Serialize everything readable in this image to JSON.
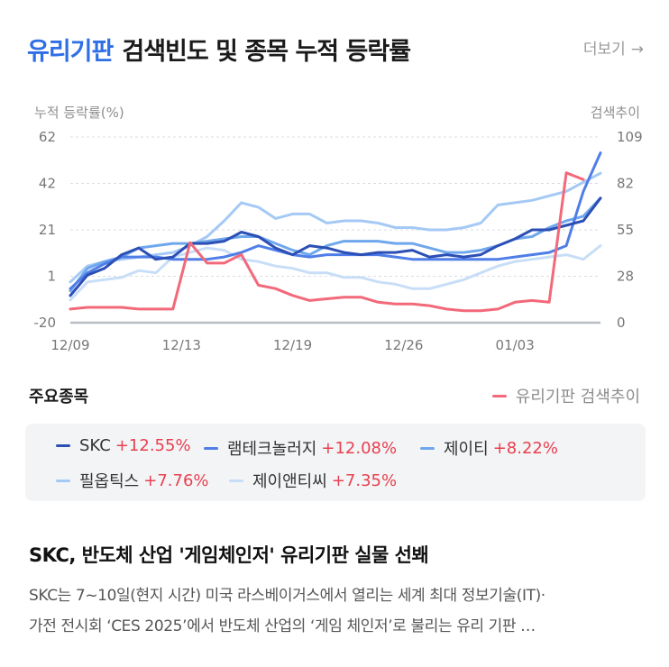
{
  "header": {
    "title_accent": "유리기판",
    "title_rest": "검색빈도 및 종목 누적 등락률",
    "more_label": "더보기",
    "more_arrow": "→"
  },
  "chart_data": {
    "type": "line",
    "left_axis_title": "누적 등락률(%)",
    "right_axis_title": "검색추이",
    "ylim_left": [
      -20,
      62
    ],
    "yticks_left": [
      "62",
      "42",
      "21",
      "1",
      "-20"
    ],
    "ylim_right": [
      0,
      109
    ],
    "yticks_right": [
      "109",
      "82",
      "55",
      "28",
      "0"
    ],
    "xlim": [
      0,
      31
    ],
    "xticks": [
      {
        "label": "12/09",
        "x": 0
      },
      {
        "label": "12/13",
        "x": 6.5
      },
      {
        "label": "12/19",
        "x": 13
      },
      {
        "label": "12/26",
        "x": 19.5
      },
      {
        "label": "01/03",
        "x": 26
      }
    ],
    "grid": true,
    "series": [
      {
        "name": "SKC",
        "color": "#2c4fb5",
        "axis": "left",
        "x": [
          0,
          1,
          2,
          3,
          4,
          5,
          6,
          7,
          8,
          9,
          10,
          11,
          12,
          13,
          14,
          15,
          16,
          17,
          18,
          19,
          20,
          21,
          22,
          23,
          24,
          25,
          26,
          27,
          28,
          29,
          30,
          31
        ],
        "y": [
          -8,
          1,
          4,
          10,
          13,
          8,
          9,
          15,
          15,
          16,
          20,
          18,
          13,
          10,
          14,
          13,
          11,
          10,
          11,
          11,
          12,
          9,
          10,
          9,
          10,
          14,
          17,
          21,
          21,
          23,
          25,
          35
        ]
      },
      {
        "name": "램테크놀러지",
        "color": "#4f7ee8",
        "axis": "left",
        "x": [
          0,
          1,
          2,
          3,
          4,
          5,
          6,
          7,
          8,
          9,
          10,
          11,
          12,
          13,
          14,
          15,
          16,
          17,
          18,
          19,
          20,
          21,
          22,
          23,
          24,
          25,
          26,
          27,
          28,
          29,
          30,
          31
        ],
        "y": [
          -5,
          2,
          6,
          9,
          9,
          9,
          8,
          8,
          8,
          9,
          11,
          14,
          12,
          10,
          9,
          10,
          10,
          10,
          10,
          9,
          8,
          8,
          8,
          8,
          8,
          8,
          9,
          10,
          11,
          14,
          38,
          55
        ]
      },
      {
        "name": "제이티",
        "color": "#6fa7ec",
        "axis": "left",
        "x": [
          0,
          1,
          2,
          3,
          4,
          5,
          6,
          7,
          8,
          9,
          10,
          11,
          12,
          13,
          14,
          15,
          16,
          17,
          18,
          19,
          20,
          21,
          22,
          23,
          24,
          25,
          26,
          27,
          28,
          29,
          30,
          31
        ],
        "y": [
          -6,
          4,
          7,
          9,
          13,
          14,
          15,
          15,
          16,
          17,
          18,
          18,
          15,
          12,
          10,
          14,
          16,
          16,
          16,
          15,
          15,
          13,
          11,
          11,
          12,
          14,
          17,
          18,
          22,
          25,
          27,
          35
        ]
      },
      {
        "name": "필옵틱스",
        "color": "#a5c9f5",
        "axis": "left",
        "x": [
          0,
          1,
          2,
          3,
          4,
          5,
          6,
          7,
          8,
          9,
          10,
          11,
          12,
          13,
          14,
          15,
          16,
          17,
          18,
          19,
          20,
          21,
          22,
          23,
          24,
          25,
          26,
          27,
          28,
          29,
          30,
          31
        ],
        "y": [
          -2,
          5,
          7,
          8,
          9,
          10,
          11,
          14,
          18,
          25,
          33,
          31,
          26,
          28,
          28,
          24,
          25,
          25,
          24,
          22,
          22,
          21,
          21,
          22,
          24,
          32,
          33,
          34,
          36,
          38,
          42,
          46
        ]
      },
      {
        "name": "제이앤티씨",
        "color": "#c8def7",
        "axis": "left",
        "x": [
          0,
          1,
          2,
          3,
          4,
          5,
          6,
          7,
          8,
          9,
          10,
          11,
          12,
          13,
          14,
          15,
          16,
          17,
          18,
          19,
          20,
          21,
          22,
          23,
          24,
          25,
          26,
          27,
          28,
          29,
          30,
          31
        ],
        "y": [
          -10,
          -2,
          -1,
          0,
          3,
          2,
          9,
          11,
          13,
          12,
          8,
          7,
          5,
          4,
          2,
          2,
          0,
          0,
          -2,
          -3,
          -5,
          -5,
          -3,
          -1,
          2,
          5,
          7,
          8,
          9,
          10,
          8,
          14
        ]
      },
      {
        "name": "유리기판 검색추이",
        "color": "#f2697a",
        "axis": "right",
        "x": [
          0,
          1,
          2,
          3,
          4,
          5,
          6,
          7,
          8,
          9,
          10,
          11,
          12,
          13,
          14,
          15,
          16,
          17,
          18,
          19,
          20,
          21,
          22,
          23,
          24,
          25,
          26,
          27,
          28,
          29,
          30
        ],
        "y": [
          8,
          9,
          9,
          9,
          8,
          8,
          8,
          47,
          35,
          35,
          40,
          22,
          20,
          16,
          13,
          14,
          15,
          15,
          12,
          11,
          11,
          10,
          8,
          7,
          7,
          8,
          12,
          13,
          12,
          88,
          84
        ]
      }
    ]
  },
  "stocks_section": {
    "label": "주요종목",
    "search_legend": "유리기판 검색추이",
    "search_color": "#f2697a",
    "items": [
      {
        "name": "SKC",
        "change": "+12.55%",
        "color": "#2c4fb5"
      },
      {
        "name": "램테크놀러지",
        "change": "+12.08%",
        "color": "#4f7ee8"
      },
      {
        "name": "제이티",
        "change": "+8.22%",
        "color": "#6fa7ec"
      },
      {
        "name": "필옵틱스",
        "change": "+7.76%",
        "color": "#a5c9f5"
      },
      {
        "name": "제이앤티씨",
        "change": "+7.35%",
        "color": "#c8def7"
      }
    ]
  },
  "news": {
    "title": "SKC, 반도체 산업 '게임체인저' 유리기판 실물 선봬",
    "body_line1": "SKC는 7~10일(현지 시간) 미국 라스베이거스에서 열리는 세계 최대 정보기술(IT)·",
    "body_line2": "가전 전시회 ‘CES 2025’에서 반도체 산업의 ‘게임 체인저’로 불리는 유리 기판 …"
  }
}
